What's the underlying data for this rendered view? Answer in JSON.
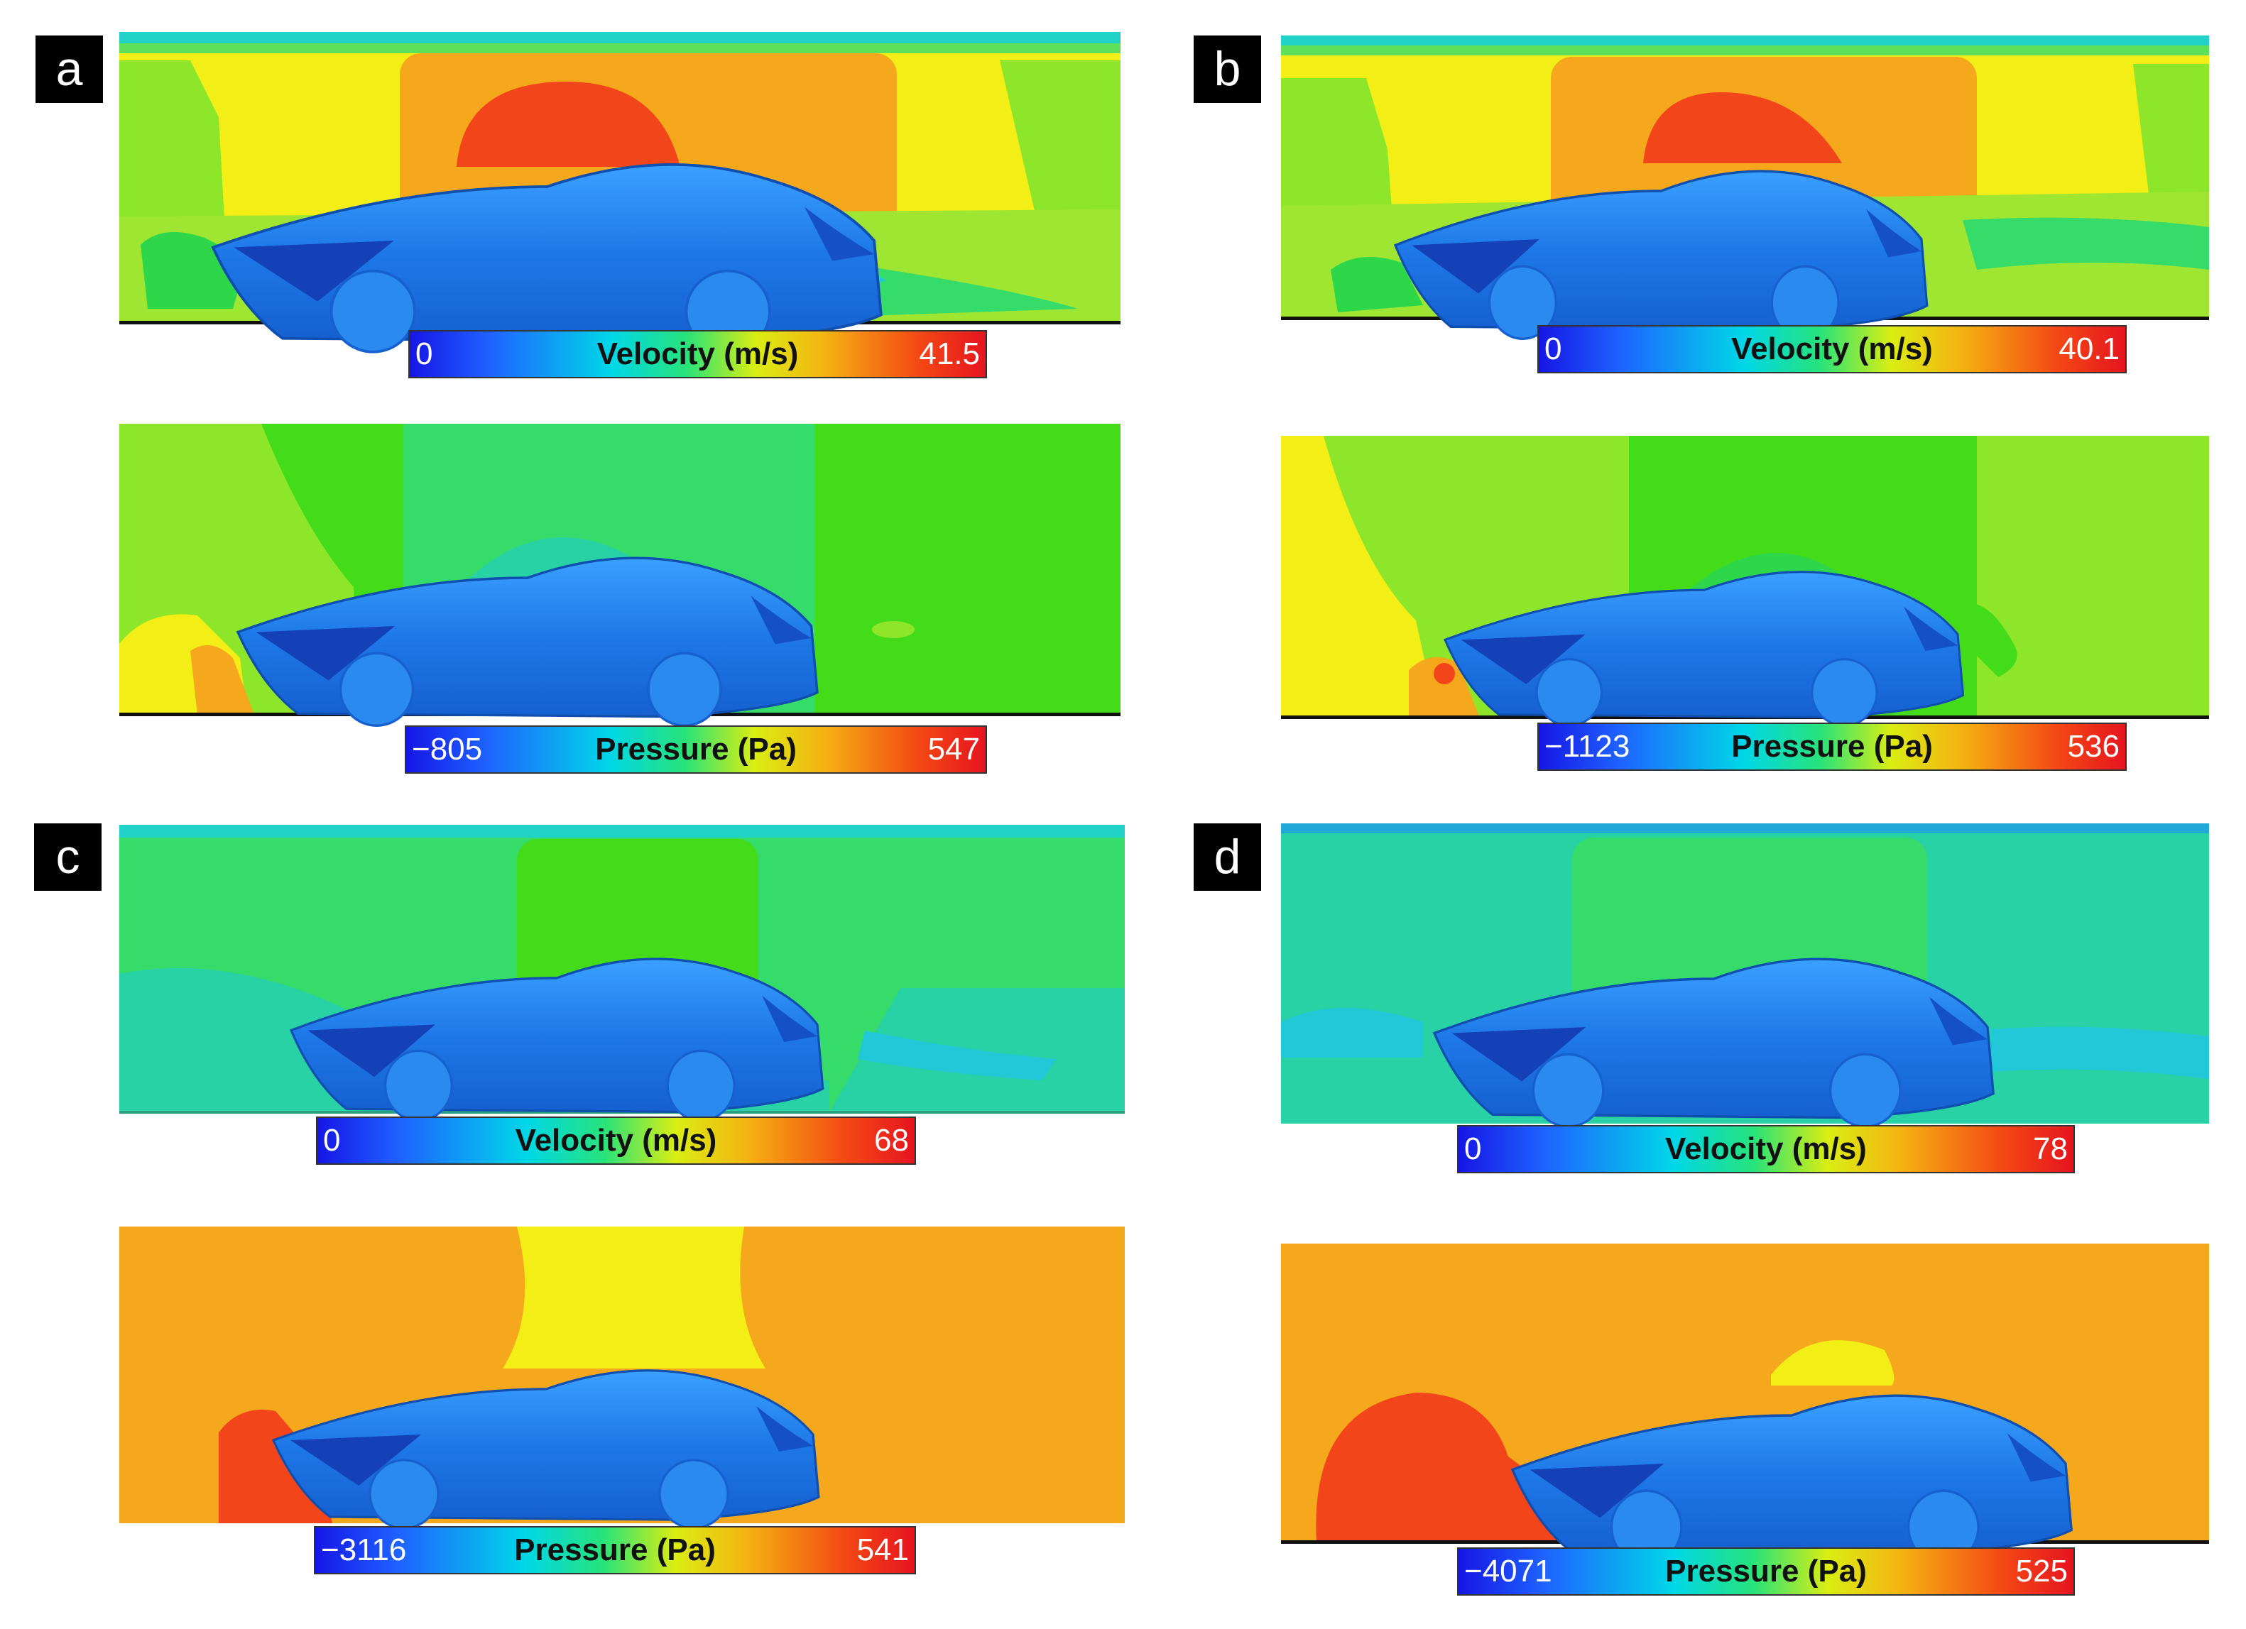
{
  "panels": [
    {
      "id": "a",
      "label": "a",
      "velocity": {
        "title": "Velocity (m/s)",
        "min": "0",
        "max": "41.5"
      },
      "pressure": {
        "title": "Pressure (Pa)",
        "min": "−805",
        "max": "547"
      }
    },
    {
      "id": "b",
      "label": "b",
      "velocity": {
        "title": "Velocity (m/s)",
        "min": "0",
        "max": "40.1"
      },
      "pressure": {
        "title": "Pressure (Pa)",
        "min": "−1123",
        "max": "536"
      }
    },
    {
      "id": "c",
      "label": "c",
      "velocity": {
        "title": "Velocity (m/s)",
        "min": "0",
        "max": "68"
      },
      "pressure": {
        "title": "Pressure (Pa)",
        "min": "−3116",
        "max": "541"
      }
    },
    {
      "id": "d",
      "label": "d",
      "velocity": {
        "title": "Velocity (m/s)",
        "min": "0",
        "max": "78"
      },
      "pressure": {
        "title": "Pressure (Pa)",
        "min": "−4071",
        "max": "525"
      }
    }
  ],
  "colors": {
    "car_body": "#1e78e8",
    "legend_blue": "#1616e6",
    "legend_red": "#e6141f"
  }
}
